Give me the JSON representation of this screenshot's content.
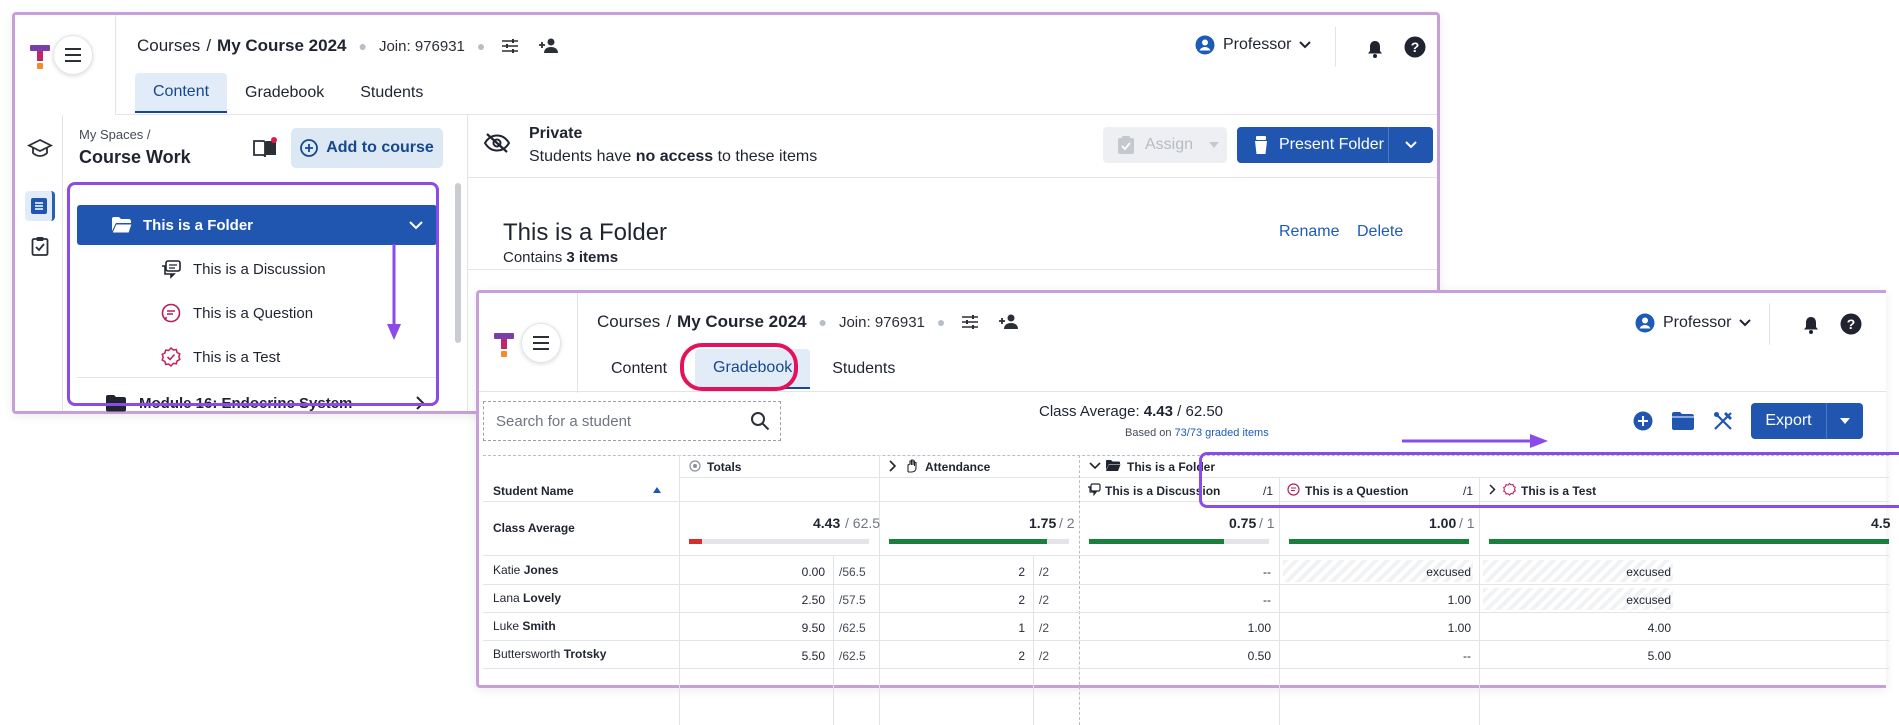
{
  "colors": {
    "accent": "#2156b0",
    "annotation_purple": "#8b4be8",
    "annotation_pink": "#e3125b",
    "progress_green": "#1a7f3c",
    "progress_red": "#d32f2f"
  },
  "content_window": {
    "header": {
      "breadcrumb_root": "Courses",
      "breadcrumb_sep": "/",
      "breadcrumb_course": "My Course 2024",
      "join_label": "Join: 976931",
      "role": "Professor",
      "tabs": [
        "Content",
        "Gradebook",
        "Students"
      ]
    },
    "sidebar": {
      "spaces_label": "My Spaces /",
      "title": "Course Work",
      "add_button": "Add to course",
      "tree": {
        "folder": "This is a Folder",
        "items": [
          "This is a Discussion",
          "This is a Question",
          "This is a Test"
        ],
        "module": "Module 16: Endocrine System"
      }
    },
    "main": {
      "visibility_title": "Private",
      "visibility_sub_prefix": "Students have ",
      "visibility_sub_bold": "no access",
      "visibility_sub_suffix": " to these items",
      "assign_button": "Assign",
      "present_button": "Present Folder",
      "folder_title": "This is a Folder",
      "contains_prefix": "Contains ",
      "contains_bold": "3 items",
      "rename_link": "Rename",
      "delete_link": "Delete"
    }
  },
  "gradebook_window": {
    "header": {
      "breadcrumb_root": "Courses",
      "breadcrumb_sep": "/",
      "breadcrumb_course": "My Course 2024",
      "join_label": "Join: 976931",
      "role": "Professor",
      "tabs": [
        "Content",
        "Gradebook",
        "Students"
      ]
    },
    "toolbar": {
      "search_placeholder": "Search for a student",
      "class_average_label": "Class Average: ",
      "class_average_value": "4.43",
      "class_average_total": " / 62.50",
      "based_on_prefix": "Based on ",
      "based_on_link": "73/73 graded items",
      "export_button": "Export"
    },
    "table": {
      "student_col": "Student Name",
      "totals_col": "Totals",
      "attendance_col": "Attendance",
      "folder_col": "This is a Folder",
      "discussion_col": "This is a Discussion",
      "discussion_max": "/1",
      "question_col": "This is a Question",
      "question_max": "/1",
      "test_col": "This is a Test",
      "class_average_row": {
        "label": "Class Average",
        "totals": "4.43",
        "totals_max": "/ 62.5",
        "totals_fraction": 0.071,
        "attendance": "1.75",
        "attendance_max": "/ 2",
        "attendance_fraction": 0.875,
        "discussion": "0.75",
        "discussion_max": "/ 1",
        "discussion_fraction": 0.75,
        "question": "1.00",
        "question_max": "/ 1",
        "question_fraction": 1.0,
        "test_partial": "4.5",
        "test_fraction": 1.0
      },
      "rows": [
        {
          "first": "Katie",
          "last": "Jones",
          "total": "0.00",
          "total_max": "/56.5",
          "attendance": "2",
          "attendance_max": "/2",
          "discussion": "--",
          "question": "excused",
          "test": "excused"
        },
        {
          "first": "Lana",
          "last": "Lovely",
          "total": "2.50",
          "total_max": "/57.5",
          "attendance": "2",
          "attendance_max": "/2",
          "discussion": "--",
          "question": "1.00",
          "test": "excused"
        },
        {
          "first": "Luke",
          "last": "Smith",
          "total": "9.50",
          "total_max": "/62.5",
          "attendance": "1",
          "attendance_max": "/2",
          "discussion": "1.00",
          "question": "1.00",
          "test": "4.00"
        },
        {
          "first": "Buttersworth",
          "last": "Trotsky",
          "total": "5.50",
          "total_max": "/62.5",
          "attendance": "2",
          "attendance_max": "/2",
          "discussion": "0.50",
          "question": "--",
          "test": "5.00"
        }
      ]
    }
  }
}
